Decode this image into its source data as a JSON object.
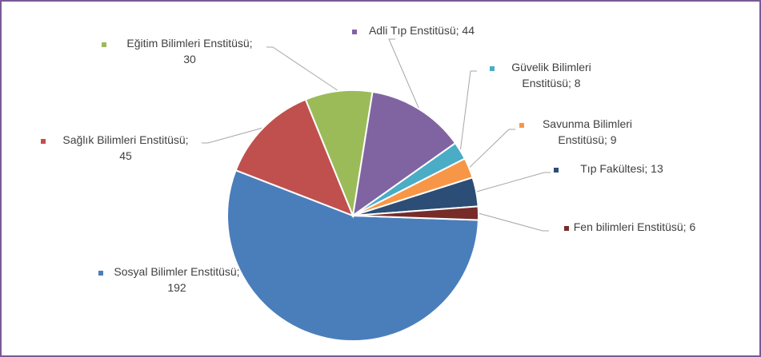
{
  "chart_data": {
    "type": "pie",
    "categories": [
      "Sosyal Bilimler Enstitüsü",
      "Sağlık Bilimleri Enstitüsü",
      "Eğitim Bilimleri Enstitüsü",
      "Adli Tıp Enstitüsü",
      "Güvelik Bilimleri Enstitüsü",
      "Savunma Bilimleri Enstitüsü",
      "Tıp Fakültesi",
      "Fen bilimleri Enstitüsü"
    ],
    "values": [
      192,
      45,
      30,
      44,
      8,
      9,
      13,
      6
    ],
    "colors": [
      "#4a7ebb",
      "#c0504d",
      "#9bbb59",
      "#8064a2",
      "#4bacc6",
      "#f79646",
      "#2c4d75",
      "#772c2a"
    ],
    "label_lines": [
      [
        "Sosyal Bilimler Enstitüsü;",
        "192"
      ],
      [
        "Sağlık Bilimleri Enstitüsü;",
        "45"
      ],
      [
        "Eğitim Bilimleri Enstitüsü;",
        "30"
      ],
      [
        "Adli Tıp Enstitüsü; 44"
      ],
      [
        "Güvelik Bilimleri",
        "Enstitüsü; 8"
      ],
      [
        "Savunma Bilimleri",
        "Enstitüsü; 9"
      ],
      [
        "Tıp Fakültesi; 13"
      ],
      [
        "Fen bilimleri Enstitüsü; 6"
      ]
    ]
  }
}
